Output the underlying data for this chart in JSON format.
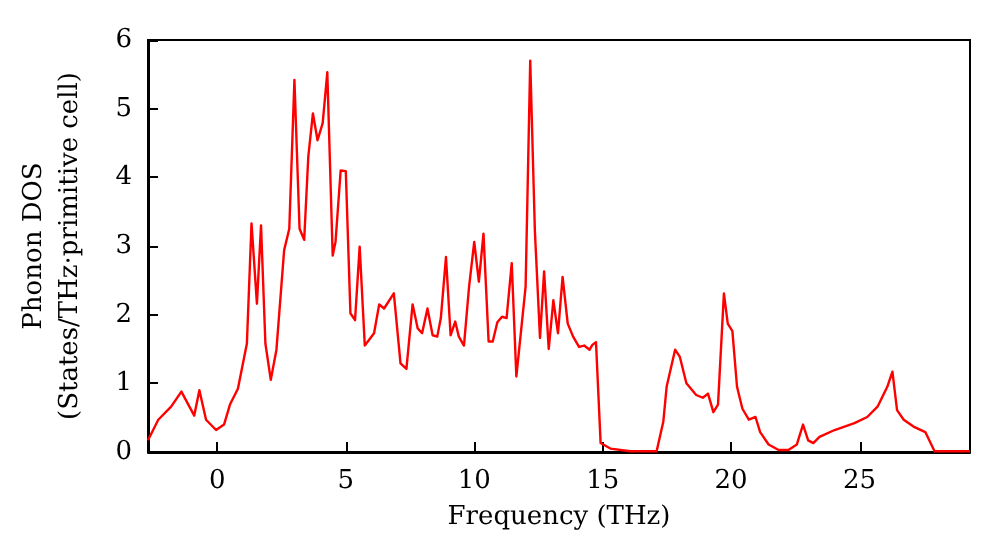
{
  "chart_data": {
    "type": "line",
    "xlabel": "Frequency (THz)",
    "ylabel": "Phonon DOS\n(States/THz·primitive cell)",
    "xlim": [
      -2.7,
      29.3
    ],
    "xticks": [
      0,
      5,
      10,
      15,
      20,
      25
    ],
    "ylim": [
      0,
      6
    ],
    "yticks": [
      0,
      1,
      2,
      3,
      4,
      5,
      6
    ],
    "marker": "none",
    "line_style": "solid",
    "x": [
      -2.7,
      -2.3,
      -1.8,
      -1.4,
      -0.9,
      -0.7,
      -0.44,
      -0.05,
      0.26,
      0.5,
      0.8,
      1.15,
      1.33,
      1.54,
      1.7,
      1.87,
      2.08,
      2.3,
      2.6,
      2.8,
      3.0,
      3.2,
      3.38,
      3.54,
      3.72,
      3.9,
      4.1,
      4.28,
      4.49,
      4.6,
      4.8,
      5.0,
      5.18,
      5.36,
      5.54,
      5.74,
      6.1,
      6.3,
      6.49,
      6.87,
      7.13,
      7.36,
      7.6,
      7.8,
      7.97,
      8.18,
      8.38,
      8.56,
      8.7,
      8.9,
      9.08,
      9.26,
      9.4,
      9.6,
      9.8,
      10.0,
      10.18,
      10.36,
      10.56,
      10.72,
      10.9,
      11.08,
      11.26,
      11.46,
      11.64,
      11.8,
      12.0,
      12.18,
      12.36,
      12.56,
      12.72,
      12.9,
      13.08,
      13.26,
      13.44,
      13.64,
      13.85,
      14.08,
      14.28,
      14.49,
      14.6,
      14.74,
      14.92,
      15.3,
      16.08,
      17.1,
      17.36,
      17.49,
      17.82,
      18.0,
      18.26,
      18.64,
      18.9,
      19.1,
      19.31,
      19.49,
      19.72,
      19.87,
      20.05,
      20.23,
      20.44,
      20.69,
      20.95,
      21.13,
      21.46,
      21.85,
      22.23,
      22.56,
      22.8,
      23.0,
      23.2,
      23.44,
      24.03,
      24.8,
      25.3,
      25.7,
      26.08,
      26.28,
      26.46,
      26.72,
      27.1,
      27.56,
      27.92,
      29.3
    ],
    "series": [
      {
        "color": "#ff0000",
        "values": [
          0.17,
          0.47,
          0.66,
          0.88,
          0.53,
          0.9,
          0.47,
          0.32,
          0.4,
          0.7,
          0.92,
          1.58,
          3.33,
          2.16,
          3.3,
          1.58,
          1.05,
          1.49,
          2.94,
          3.25,
          5.42,
          3.25,
          3.09,
          4.3,
          4.93,
          4.54,
          4.79,
          5.53,
          2.86,
          3.06,
          4.1,
          4.09,
          2.02,
          1.92,
          2.99,
          1.55,
          1.73,
          2.15,
          2.09,
          2.31,
          1.29,
          1.21,
          2.15,
          1.8,
          1.73,
          2.09,
          1.7,
          1.68,
          1.95,
          2.84,
          1.7,
          1.9,
          1.68,
          1.55,
          2.41,
          3.06,
          2.48,
          3.18,
          1.61,
          1.61,
          1.89,
          1.97,
          1.95,
          2.75,
          1.1,
          1.68,
          2.41,
          5.7,
          3.23,
          1.66,
          2.63,
          1.5,
          2.21,
          1.73,
          2.55,
          1.87,
          1.68,
          1.53,
          1.55,
          1.49,
          1.56,
          1.6,
          0.13,
          0.05,
          0.01,
          0.01,
          0.44,
          0.95,
          1.49,
          1.39,
          1.0,
          0.83,
          0.79,
          0.85,
          0.58,
          0.69,
          2.31,
          1.87,
          1.76,
          0.95,
          0.63,
          0.47,
          0.51,
          0.29,
          0.11,
          0.03,
          0.03,
          0.11,
          0.4,
          0.17,
          0.13,
          0.22,
          0.32,
          0.42,
          0.51,
          0.66,
          0.95,
          1.17,
          0.61,
          0.47,
          0.37,
          0.29,
          0.01,
          0.01
        ]
      }
    ]
  }
}
